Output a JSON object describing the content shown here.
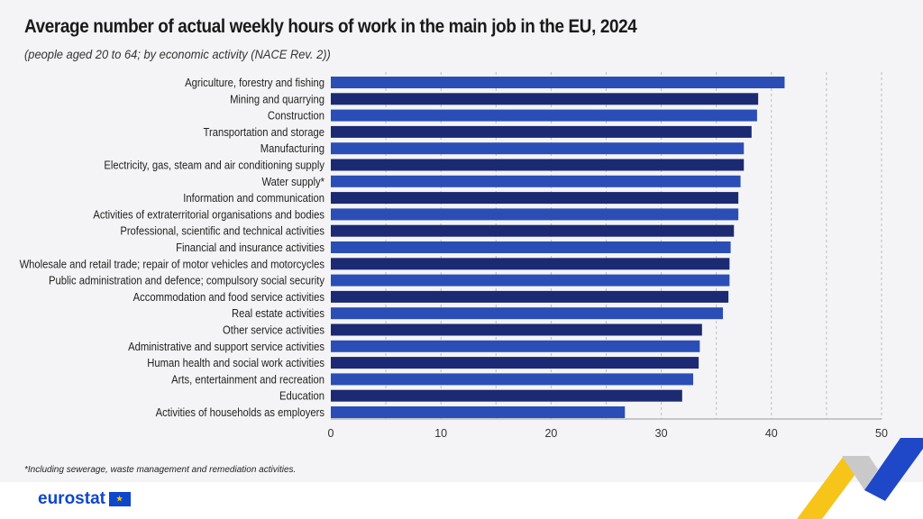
{
  "chart_data": {
    "type": "bar",
    "orientation": "horizontal",
    "title": "Average number of actual weekly hours of work in the main job in the EU, 2024",
    "subtitle": "(people aged 20 to 64; by economic activity (NACE Rev. 2))",
    "categories": [
      "Agriculture, forestry and fishing",
      "Mining and quarrying",
      "Construction",
      "Transportation and storage",
      "Manufacturing",
      "Electricity, gas, steam and air conditioning supply",
      "Water supply*",
      "Information and communication",
      "Activities of extraterritorial organisations and bodies",
      "Professional, scientific and technical activities",
      "Financial and insurance activities",
      "Wholesale and retail trade; repair of motor vehicles and motorcycles",
      "Public administration and defence; compulsory social security",
      "Accommodation and food service activities",
      "Real estate activities",
      "Other service activities",
      "Administrative and support service activities",
      "Human health and social work activities",
      "Arts, entertainment and recreation",
      "Education",
      "Activities of households as employers"
    ],
    "values": [
      41.2,
      38.8,
      38.7,
      38.2,
      37.5,
      37.5,
      37.2,
      37.0,
      37.0,
      36.6,
      36.3,
      36.2,
      36.2,
      36.1,
      35.6,
      33.7,
      33.5,
      33.4,
      32.9,
      31.9,
      26.7
    ],
    "xlim": [
      0,
      50
    ],
    "xticks": [
      0,
      10,
      20,
      30,
      40,
      50
    ],
    "grid": "vertical dashed every 5",
    "colors": {
      "bar_light": "#2a4eb5",
      "bar_dark": "#1b2a72"
    }
  },
  "footnote": "*Including sewerage, waste management and remediation activities.",
  "logo": "eurostat"
}
